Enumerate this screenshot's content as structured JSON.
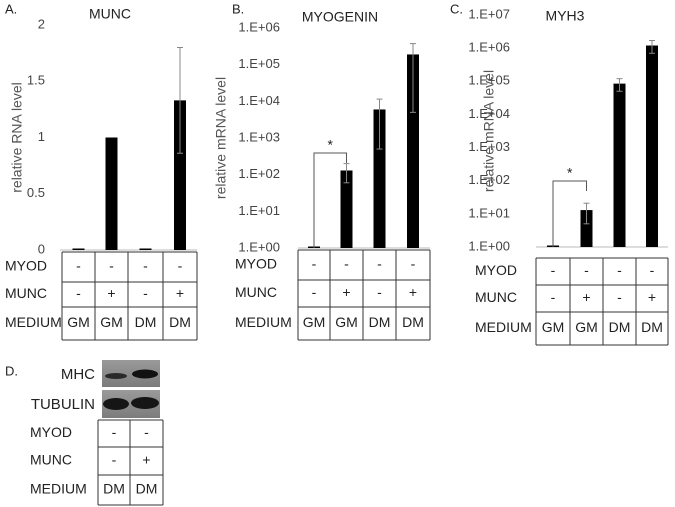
{
  "chart_data": [
    {
      "type": "bar",
      "panel": "A.",
      "title": "MUNC",
      "y_label": "relative RNA level",
      "color": "#000000",
      "values": [
        0,
        1,
        0,
        1.33
      ],
      "errors": [
        0,
        0,
        0,
        0.47
      ],
      "ylim": [
        0,
        2
      ],
      "yticks": [
        0,
        0.5,
        1,
        1.5,
        2
      ],
      "log_scale": false,
      "grid": false,
      "table": {
        "rows": [
          {
            "label": "MYOD",
            "cells": [
              "-",
              "-",
              "-",
              "-"
            ]
          },
          {
            "label": "MUNC",
            "cells": [
              "-",
              "+",
              "-",
              "+"
            ]
          },
          {
            "label": "MEDIUM",
            "cells": [
              "GM",
              "GM",
              "DM",
              "DM"
            ]
          }
        ]
      }
    },
    {
      "type": "bar",
      "panel": "B.",
      "title": "MYOGENIN",
      "y_label": "relative mRNA level",
      "color": "#000000",
      "values": [
        1,
        130,
        6000,
        190000
      ],
      "errors": [
        0,
        70,
        5500,
        185000
      ],
      "ylim": [
        1,
        1000000
      ],
      "yticks": [
        {
          "value": 1,
          "label": "1.E+00"
        },
        {
          "value": 10,
          "label": "1.E+01"
        },
        {
          "value": 100,
          "label": "1.E+02"
        },
        {
          "value": 1000,
          "label": "1.E+03"
        },
        {
          "value": 10000,
          "label": "1.E+04"
        },
        {
          "value": 100000,
          "label": "1.E+05"
        },
        {
          "value": 1000000,
          "label": "1.E+06"
        }
      ],
      "log_scale": true,
      "grid": false,
      "annotation": "*",
      "table": {
        "rows": [
          {
            "label": "MYOD",
            "cells": [
              "-",
              "-",
              "-",
              "-"
            ]
          },
          {
            "label": "MUNC",
            "cells": [
              "-",
              "+",
              "-",
              "+"
            ]
          },
          {
            "label": "MEDIUM",
            "cells": [
              "GM",
              "GM",
              "DM",
              "DM"
            ]
          }
        ]
      }
    },
    {
      "type": "bar",
      "panel": "C.",
      "title": "MYH3",
      "y_label": "relative mRNA level",
      "color": "#000000",
      "values": [
        1,
        13,
        85000,
        1200000
      ],
      "errors": [
        0,
        8,
        35000,
        500000
      ],
      "ylim": [
        1,
        10000000
      ],
      "yticks": [
        {
          "value": 1,
          "label": "1.E+00"
        },
        {
          "value": 10,
          "label": "1.E+01"
        },
        {
          "value": 100,
          "label": "1.E+02"
        },
        {
          "value": 1000,
          "label": "1.E+03"
        },
        {
          "value": 10000,
          "label": "1.E+04"
        },
        {
          "value": 100000,
          "label": "1.E+05"
        },
        {
          "value": 1000000,
          "label": "1.E+06"
        },
        {
          "value": 10000000,
          "label": "1.E+07"
        }
      ],
      "log_scale": true,
      "grid": false,
      "annotation": "*",
      "table": {
        "rows": [
          {
            "label": "MYOD",
            "cells": [
              "-",
              "-",
              "-",
              "-"
            ]
          },
          {
            "label": "MUNC",
            "cells": [
              "-",
              "+",
              "-",
              "+"
            ]
          },
          {
            "label": "MEDIUM",
            "cells": [
              "GM",
              "GM",
              "DM",
              "DM"
            ]
          }
        ]
      }
    }
  ],
  "panel_d": {
    "panel": "D.",
    "blots": [
      "MHC",
      "TUBULIN"
    ],
    "table": {
      "rows": [
        {
          "label": "MYOD",
          "cells": [
            "-",
            "-"
          ]
        },
        {
          "label": "MUNC",
          "cells": [
            "-",
            "+"
          ]
        },
        {
          "label": "MEDIUM",
          "cells": [
            "DM",
            "DM"
          ]
        }
      ]
    }
  }
}
